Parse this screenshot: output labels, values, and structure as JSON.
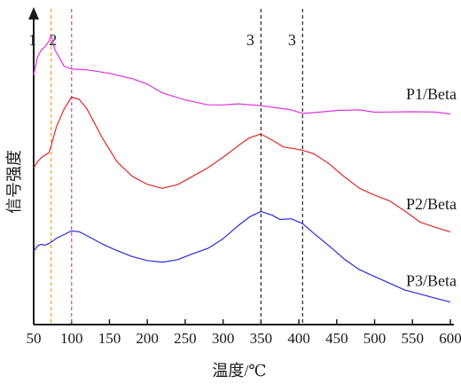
{
  "chart_data": {
    "type": "line",
    "xlabel": "温度/℃",
    "ylabel": "信号强度",
    "xlim": [
      50,
      600
    ],
    "x_ticks": [
      "50",
      "100",
      "150",
      "200",
      "250",
      "300",
      "350",
      "400",
      "450",
      "500",
      "550",
      "600"
    ],
    "y_ticks_shown": false,
    "grid": false,
    "reference_lines": [
      {
        "x": 73,
        "label": "1",
        "color": "#f5a623"
      },
      {
        "x": 100,
        "label": "2",
        "color": "#e040e0"
      },
      {
        "x": 350,
        "label": "3",
        "color": "#333333"
      },
      {
        "x": 405,
        "label": "3",
        "color": "#333333"
      }
    ],
    "series": [
      {
        "name": "P1/Beta",
        "color": "#dd33dd",
        "x": [
          50,
          55,
          60,
          65,
          70,
          73,
          78,
          85,
          90,
          100,
          120,
          150,
          180,
          200,
          220,
          250,
          280,
          300,
          320,
          350,
          370,
          390,
          405,
          420,
          450,
          480,
          500,
          520,
          550,
          580,
          600
        ],
        "y": [
          0.78,
          0.84,
          0.86,
          0.87,
          0.89,
          0.91,
          0.86,
          0.83,
          0.81,
          0.8,
          0.795,
          0.785,
          0.77,
          0.75,
          0.72,
          0.7,
          0.685,
          0.682,
          0.685,
          0.682,
          0.675,
          0.665,
          0.655,
          0.66,
          0.665,
          0.665,
          0.66,
          0.662,
          0.66,
          0.658,
          0.655
        ]
      },
      {
        "name": "P2/Beta",
        "color": "#dd2a2a",
        "x": [
          50,
          55,
          60,
          65,
          70,
          73,
          80,
          90,
          100,
          110,
          120,
          140,
          160,
          180,
          200,
          220,
          240,
          260,
          280,
          300,
          320,
          335,
          350,
          365,
          380,
          395,
          405,
          420,
          440,
          460,
          480,
          500,
          520,
          540,
          560,
          580,
          600
        ],
        "y": [
          0.48,
          0.5,
          0.51,
          0.52,
          0.53,
          0.55,
          0.61,
          0.67,
          0.71,
          0.7,
          0.67,
          0.58,
          0.5,
          0.45,
          0.425,
          0.415,
          0.425,
          0.45,
          0.48,
          0.515,
          0.55,
          0.575,
          0.59,
          0.57,
          0.545,
          0.54,
          0.538,
          0.525,
          0.49,
          0.45,
          0.415,
          0.39,
          0.37,
          0.34,
          0.305,
          0.285,
          0.27
        ]
      },
      {
        "name": "P3/Beta",
        "color": "#2a2ad9",
        "x": [
          50,
          55,
          60,
          65,
          70,
          75,
          80,
          90,
          100,
          110,
          120,
          140,
          160,
          180,
          200,
          220,
          240,
          260,
          280,
          300,
          320,
          335,
          350,
          365,
          375,
          390,
          405,
          420,
          440,
          460,
          480,
          500,
          520,
          540,
          560,
          580,
          600
        ],
        "y": [
          0.21,
          0.225,
          0.23,
          0.23,
          0.235,
          0.24,
          0.25,
          0.265,
          0.275,
          0.27,
          0.26,
          0.235,
          0.21,
          0.19,
          0.18,
          0.175,
          0.18,
          0.2,
          0.22,
          0.25,
          0.29,
          0.32,
          0.34,
          0.325,
          0.31,
          0.315,
          0.3,
          0.265,
          0.225,
          0.185,
          0.15,
          0.125,
          0.105,
          0.085,
          0.07,
          0.055,
          0.045
        ]
      }
    ],
    "label_x": {
      "P1/Beta": 510,
      "P2/Beta": 510,
      "P3/Beta": 510
    }
  }
}
